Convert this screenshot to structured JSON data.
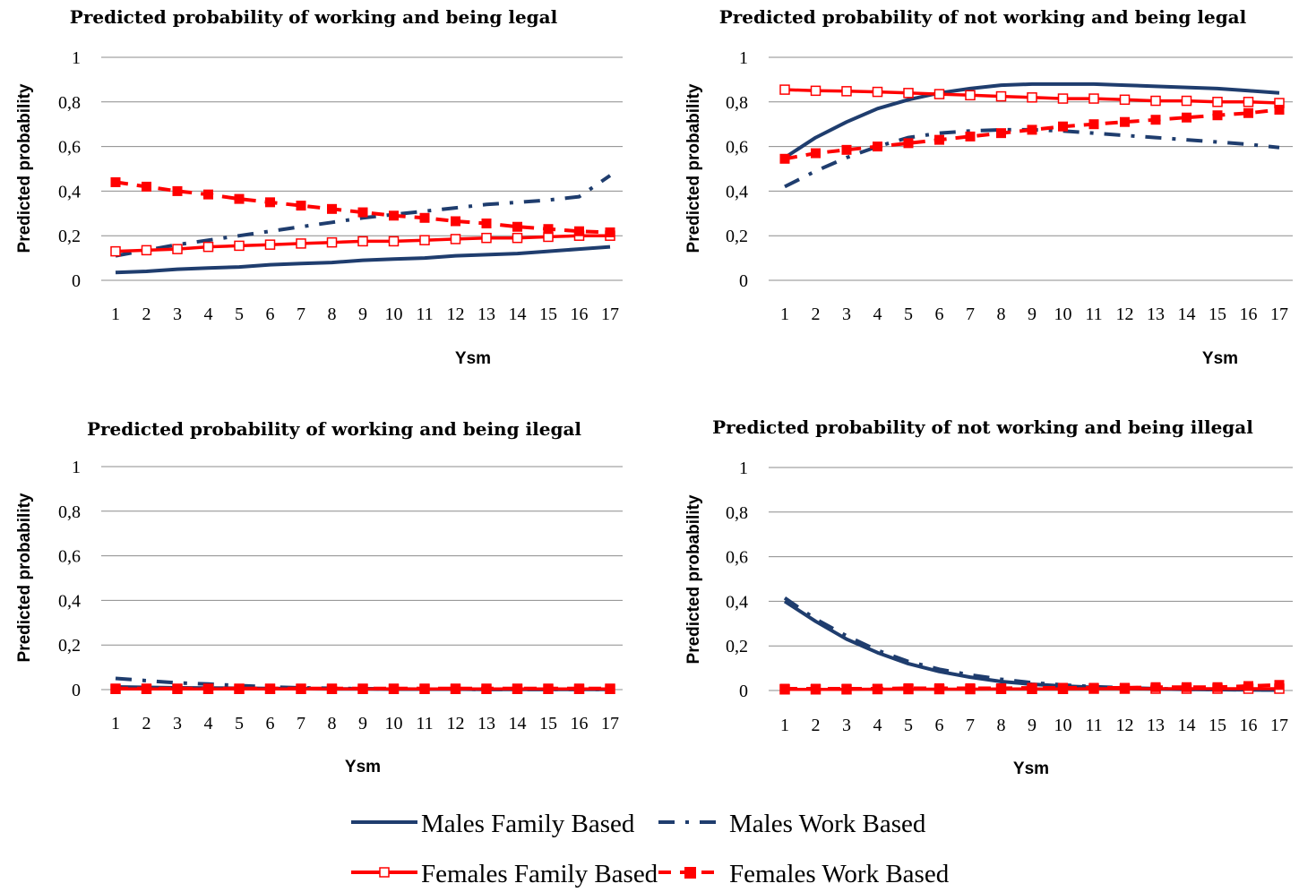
{
  "legend": [
    {
      "label": "Males Family Based",
      "color": "#1f3d6e",
      "style": "solid",
      "marker": "none"
    },
    {
      "label": "Males Work Based",
      "color": "#1f3d6e",
      "style": "dashdot",
      "marker": "none"
    },
    {
      "label": "Females Family Based",
      "color": "#ff0000",
      "style": "solid",
      "marker": "open-square"
    },
    {
      "label": "Females Work Based",
      "color": "#ff0000",
      "style": "dashed",
      "marker": "filled-square"
    }
  ],
  "chart_data": [
    {
      "type": "line",
      "title": "Predicted probability of working and being legal",
      "xlabel": "Ysm",
      "ylabel": "Predicted probability",
      "categories": [
        "1",
        "2",
        "3",
        "4",
        "5",
        "6",
        "7",
        "8",
        "9",
        "10",
        "11",
        "12",
        "13",
        "14",
        "15",
        "16",
        "17"
      ],
      "yticks": [
        "0",
        "0,2",
        "0,4",
        "0,6",
        "0,8",
        "1"
      ],
      "ylim": [
        0,
        1
      ],
      "grid": true,
      "series": [
        {
          "name": "Males Family Based",
          "values": [
            0.035,
            0.04,
            0.05,
            0.055,
            0.06,
            0.07,
            0.075,
            0.08,
            0.09,
            0.095,
            0.1,
            0.11,
            0.115,
            0.12,
            0.13,
            0.14,
            0.15
          ]
        },
        {
          "name": "Males Work Based",
          "values": [
            0.11,
            0.135,
            0.16,
            0.18,
            0.2,
            0.22,
            0.24,
            0.26,
            0.28,
            0.295,
            0.31,
            0.325,
            0.34,
            0.35,
            0.36,
            0.375,
            0.47
          ]
        },
        {
          "name": "Females Family Based",
          "values": [
            0.13,
            0.135,
            0.14,
            0.15,
            0.155,
            0.16,
            0.165,
            0.17,
            0.175,
            0.175,
            0.18,
            0.185,
            0.19,
            0.19,
            0.195,
            0.2,
            0.2
          ]
        },
        {
          "name": "Females Work Based",
          "values": [
            0.44,
            0.42,
            0.4,
            0.385,
            0.365,
            0.35,
            0.335,
            0.32,
            0.305,
            0.29,
            0.28,
            0.265,
            0.255,
            0.24,
            0.23,
            0.22,
            0.215
          ]
        }
      ]
    },
    {
      "type": "line",
      "title": "Predicted probability of not working and being legal",
      "xlabel": "Ysm",
      "ylabel": "Predicted probability",
      "categories": [
        "1",
        "2",
        "3",
        "4",
        "5",
        "6",
        "7",
        "8",
        "9",
        "10",
        "11",
        "12",
        "13",
        "14",
        "15",
        "16",
        "17"
      ],
      "yticks": [
        "0",
        "0,2",
        "0,4",
        "0,6",
        "0,8",
        "1"
      ],
      "ylim": [
        0,
        1
      ],
      "grid": true,
      "series": [
        {
          "name": "Males Family Based",
          "values": [
            0.55,
            0.64,
            0.71,
            0.77,
            0.81,
            0.84,
            0.86,
            0.875,
            0.88,
            0.88,
            0.88,
            0.875,
            0.87,
            0.865,
            0.86,
            0.85,
            0.84
          ]
        },
        {
          "name": "Males Work Based",
          "values": [
            0.42,
            0.49,
            0.55,
            0.6,
            0.64,
            0.66,
            0.67,
            0.675,
            0.675,
            0.67,
            0.66,
            0.65,
            0.64,
            0.63,
            0.62,
            0.61,
            0.595
          ]
        },
        {
          "name": "Females Family Based",
          "values": [
            0.855,
            0.85,
            0.848,
            0.845,
            0.84,
            0.835,
            0.83,
            0.825,
            0.82,
            0.815,
            0.815,
            0.81,
            0.805,
            0.805,
            0.8,
            0.8,
            0.795
          ]
        },
        {
          "name": "Females Work Based",
          "values": [
            0.545,
            0.57,
            0.585,
            0.6,
            0.615,
            0.63,
            0.645,
            0.66,
            0.675,
            0.69,
            0.7,
            0.71,
            0.72,
            0.73,
            0.74,
            0.75,
            0.765
          ]
        }
      ]
    },
    {
      "type": "line",
      "title": "Predicted probability of working and being ilegal",
      "xlabel": "Ysm",
      "ylabel": "Predicted probability",
      "categories": [
        "1",
        "2",
        "3",
        "4",
        "5",
        "6",
        "7",
        "8",
        "9",
        "10",
        "11",
        "12",
        "13",
        "14",
        "15",
        "16",
        "17"
      ],
      "yticks": [
        "0",
        "0,2",
        "0,4",
        "0,6",
        "0,8",
        "1"
      ],
      "ylim": [
        0,
        1
      ],
      "grid": true,
      "series": [
        {
          "name": "Males Family Based",
          "values": [
            0.012,
            0.01,
            0.008,
            0.007,
            0.006,
            0.005,
            0.004,
            0.003,
            0.003,
            0.002,
            0.002,
            0.002,
            0.001,
            0.001,
            0.001,
            0.001,
            0.001
          ]
        },
        {
          "name": "Males Work Based",
          "values": [
            0.05,
            0.04,
            0.03,
            0.025,
            0.018,
            0.012,
            0.008,
            0.006,
            0.004,
            0.003,
            0.002,
            0.002,
            0.001,
            0.001,
            0.001,
            0.001,
            0.001
          ]
        },
        {
          "name": "Females Family Based",
          "values": [
            0.003,
            0.003,
            0.003,
            0.003,
            0.003,
            0.003,
            0.003,
            0.003,
            0.003,
            0.003,
            0.003,
            0.003,
            0.003,
            0.003,
            0.003,
            0.003,
            0.003
          ]
        },
        {
          "name": "Females Work Based",
          "values": [
            0.005,
            0.005,
            0.005,
            0.005,
            0.005,
            0.005,
            0.005,
            0.005,
            0.005,
            0.005,
            0.005,
            0.005,
            0.005,
            0.005,
            0.005,
            0.005,
            0.005
          ]
        }
      ]
    },
    {
      "type": "line",
      "title": "Predicted probability of not working and being illegal",
      "xlabel": "Ysm",
      "ylabel": "Predicted probability",
      "categories": [
        "1",
        "2",
        "3",
        "4",
        "5",
        "6",
        "7",
        "8",
        "9",
        "10",
        "11",
        "12",
        "13",
        "14",
        "15",
        "16",
        "17"
      ],
      "yticks": [
        "0",
        "0,2",
        "0,4",
        "0,6",
        "0,8",
        "1"
      ],
      "ylim": [
        0,
        1
      ],
      "grid": true,
      "series": [
        {
          "name": "Males Family Based",
          "values": [
            0.4,
            0.31,
            0.23,
            0.17,
            0.12,
            0.085,
            0.06,
            0.04,
            0.028,
            0.02,
            0.014,
            0.01,
            0.007,
            0.005,
            0.004,
            0.003,
            0.002
          ]
        },
        {
          "name": "Males Work Based",
          "values": [
            0.415,
            0.32,
            0.245,
            0.18,
            0.13,
            0.095,
            0.07,
            0.05,
            0.035,
            0.025,
            0.017,
            0.012,
            0.008,
            0.006,
            0.004,
            0.003,
            0.002
          ]
        },
        {
          "name": "Females Family Based",
          "values": [
            0.005,
            0.005,
            0.005,
            0.006,
            0.006,
            0.006,
            0.006,
            0.007,
            0.007,
            0.007,
            0.008,
            0.008,
            0.008,
            0.008,
            0.008,
            0.008,
            0.008
          ]
        },
        {
          "name": "Females Work Based",
          "values": [
            0.008,
            0.008,
            0.008,
            0.008,
            0.01,
            0.01,
            0.01,
            0.01,
            0.012,
            0.012,
            0.012,
            0.012,
            0.015,
            0.015,
            0.015,
            0.02,
            0.025
          ]
        }
      ]
    }
  ]
}
